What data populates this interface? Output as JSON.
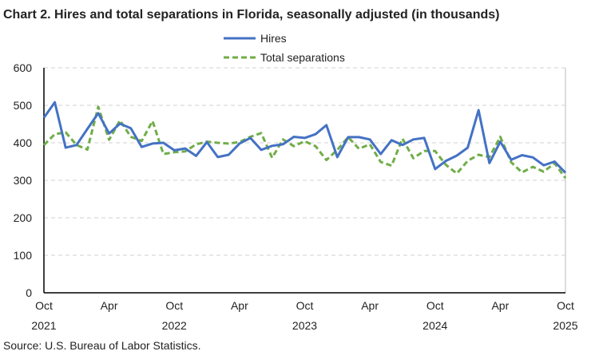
{
  "chart_data": {
    "type": "line",
    "title": "Chart 2. Hires and total separations in Florida, seasonally adjusted (in thousands)",
    "source": "Source: U.S. Bureau of Labor Statistics.",
    "x_start": "2021-10",
    "x_end": "2025-10",
    "x_tick_labels": [
      {
        "month": "Oct",
        "year": "2021"
      },
      {
        "month": "Apr",
        "year": ""
      },
      {
        "month": "Oct",
        "year": "2022"
      },
      {
        "month": "Apr",
        "year": ""
      },
      {
        "month": "Oct",
        "year": "2023"
      },
      {
        "month": "Apr",
        "year": ""
      },
      {
        "month": "Oct",
        "year": "2024"
      },
      {
        "month": "Apr",
        "year": ""
      },
      {
        "month": "Oct",
        "year": "2025"
      }
    ],
    "y_ticks": [
      "0",
      "100",
      "200",
      "300",
      "400",
      "500",
      "600"
    ],
    "ylim": [
      0,
      600
    ],
    "grid": "horizontal dashed",
    "legend_position": "top-center",
    "series": [
      {
        "name": "Hires",
        "color": "#4472C4",
        "style": "solid",
        "values": [
          467,
          508,
          387,
          394,
          437,
          479,
          425,
          451,
          439,
          389,
          398,
          400,
          380,
          385,
          365,
          402,
          362,
          368,
          398,
          413,
          381,
          392,
          396,
          416,
          413,
          423,
          447,
          362,
          415,
          415,
          409,
          370,
          407,
          394,
          409,
          413,
          330,
          352,
          366,
          387,
          487,
          346,
          403,
          355,
          367,
          361,
          340,
          350,
          320
        ]
      },
      {
        "name": "Total separations",
        "color": "#70AD47",
        "style": "dashed",
        "values": [
          394,
          423,
          428,
          394,
          382,
          496,
          408,
          460,
          416,
          405,
          458,
          370,
          375,
          377,
          396,
          403,
          400,
          398,
          402,
          416,
          426,
          360,
          409,
          391,
          404,
          391,
          354,
          381,
          415,
          384,
          396,
          349,
          339,
          411,
          359,
          378,
          378,
          341,
          318,
          352,
          368,
          362,
          416,
          348,
          321,
          336,
          323,
          345,
          306
        ]
      }
    ]
  }
}
